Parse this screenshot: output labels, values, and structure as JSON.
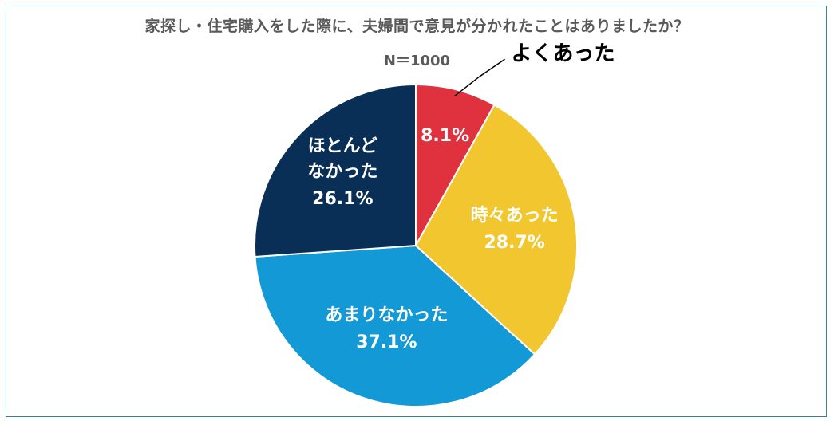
{
  "title": "家探し・住宅購入をした際に、夫婦間で意見が分かれたことはありましたか？",
  "subtitle": "N＝1000",
  "chart_data": {
    "type": "pie",
    "title": "家探し・住宅購入をした際に、夫婦間で意見が分かれたことはありましたか？",
    "subtitle": "N＝1000",
    "slices": [
      {
        "name": "よくあった",
        "value": 8.1,
        "label": "8.1%",
        "color": "#e0313e",
        "label_outside": true
      },
      {
        "name": "時々あった",
        "value": 28.7,
        "label": "28.7%",
        "color": "#f1c62f"
      },
      {
        "name": "あまりなかった",
        "value": 37.1,
        "label": "37.1%",
        "color": "#1399d6"
      },
      {
        "name": "ほとんどなかった",
        "name_lines": [
          "ほとんど",
          "なかった"
        ],
        "value": 26.1,
        "label": "26.1%",
        "color": "#0a2f57"
      }
    ],
    "start_angle": "12 o'clock",
    "direction": "clockwise"
  }
}
